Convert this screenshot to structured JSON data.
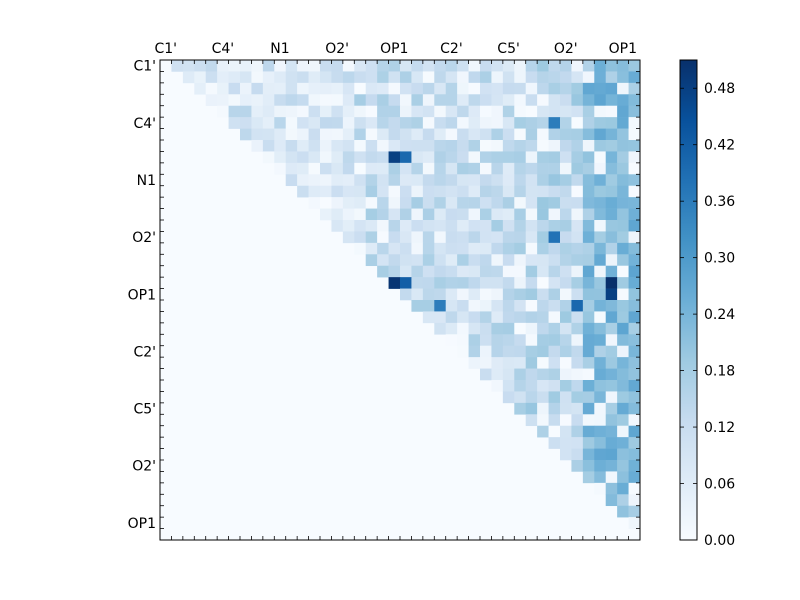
{
  "chart_data": {
    "type": "heatmap",
    "matrix_size": 42,
    "x_tick_labels": [
      "C1'",
      "C4'",
      "N1",
      "O2'",
      "OP1",
      "C2'",
      "C5'",
      "O2'",
      "OP1"
    ],
    "y_tick_labels": [
      "C1'",
      "C4'",
      "N1",
      "O2'",
      "OP1",
      "C2'",
      "C5'",
      "O2'",
      "OP1"
    ],
    "label_tick_indices": [
      0.5,
      5.5,
      10.5,
      15.5,
      20.5,
      25.5,
      30.5,
      35.5,
      40.5
    ],
    "mask": "upper-triangle",
    "colormap": "Blues",
    "colorbar": {
      "min": 0.0,
      "max": 0.51,
      "ticks": [
        "0.00",
        "0.06",
        "0.12",
        "0.18",
        "0.24",
        "0.30",
        "0.36",
        "0.42",
        "0.48"
      ],
      "tick_values": [
        0.0,
        0.06,
        0.12,
        0.18,
        0.24,
        0.3,
        0.36,
        0.42,
        0.48
      ]
    },
    "notable_cells": [
      {
        "row": 8,
        "col": 20,
        "value": 0.48
      },
      {
        "row": 8,
        "col": 21,
        "value": 0.4
      },
      {
        "row": 19,
        "col": 20,
        "value": 0.5
      },
      {
        "row": 19,
        "col": 21,
        "value": 0.42
      },
      {
        "row": 19,
        "col": 39,
        "value": 0.51
      },
      {
        "row": 20,
        "col": 39,
        "value": 0.48
      },
      {
        "row": 5,
        "col": 34,
        "value": 0.36
      },
      {
        "row": 15,
        "col": 34,
        "value": 0.38
      },
      {
        "row": 21,
        "col": 24,
        "value": 0.36
      },
      {
        "row": 21,
        "col": 36,
        "value": 0.4
      }
    ],
    "title": "",
    "xlabel": "",
    "ylabel": ""
  }
}
